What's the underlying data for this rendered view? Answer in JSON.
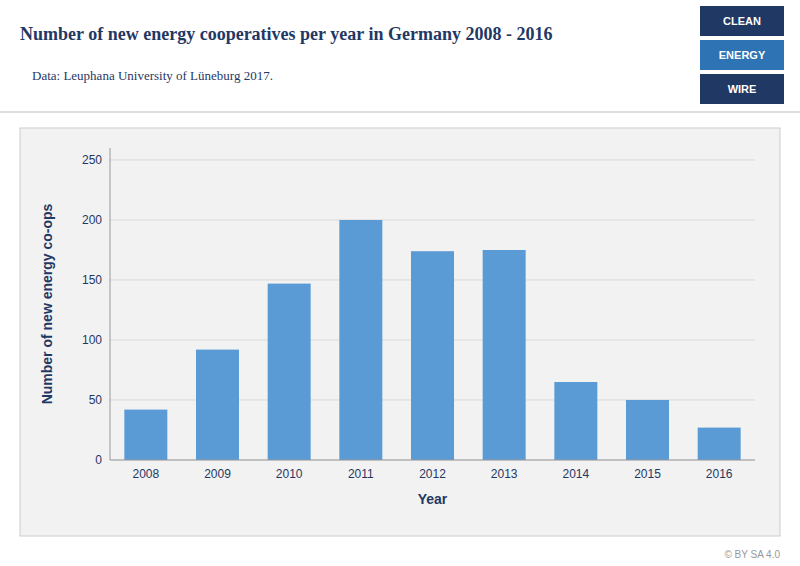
{
  "chart_data": {
    "type": "bar",
    "title": "Number of new energy cooperatives per year in Germany 2008 - 2016",
    "subtitle": "Data: Leuphana University of Lüneburg 2017.",
    "xlabel": "Year",
    "ylabel": "Number of new energy co-ops",
    "categories": [
      "2008",
      "2009",
      "2010",
      "2011",
      "2012",
      "2013",
      "2014",
      "2015",
      "2016"
    ],
    "values": [
      42,
      92,
      147,
      200,
      174,
      175,
      65,
      50,
      27
    ],
    "color": "#5b9bd5",
    "ylim": [
      0,
      260
    ],
    "yticks": [
      0,
      50,
      100,
      150,
      200,
      250
    ],
    "grid": true,
    "annotations": [
      "CLEAN",
      "ENERGY",
      "WIRE",
      "© BY SA 4.0"
    ]
  }
}
